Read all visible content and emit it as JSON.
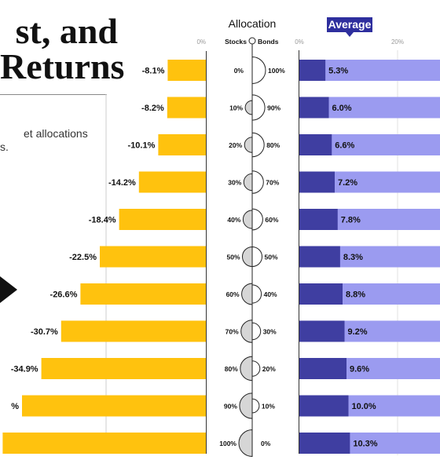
{
  "header": {
    "title_line1": "st, and",
    "title_line2": "Returns",
    "subtitle_line1": "et allocations",
    "subtitle_line2": "s."
  },
  "allocation": {
    "title": "Allocation",
    "stocks_label": "Stocks",
    "bonds_label": "Bonds"
  },
  "average_badge": "Average",
  "colors": {
    "worst_bar": "#ffc20e",
    "avg_bar_dark": "#3f3ea1",
    "avg_bar_light": "#9b9bf0",
    "badge": "#2e2f9e"
  },
  "chart_data": [
    {
      "type": "bar",
      "orientation": "horizontal",
      "categories": [
        "0% / 100%",
        "10% / 90%",
        "20% / 80%",
        "30% / 70%",
        "40% / 60%",
        "50% / 50%",
        "60% / 40%",
        "70% / 30%",
        "80% / 20%",
        "90% / 10%",
        "100% / 0%"
      ],
      "values": [
        -8.1,
        -8.2,
        -10.1,
        -14.2,
        -18.4,
        -22.5,
        -26.6,
        -30.7,
        -34.9,
        -39.0,
        -43.1
      ],
      "labels": [
        "-8.1%",
        "-8.2%",
        "-10.1%",
        "-14.2%",
        "-18.4%",
        "-22.5%",
        "-26.6%",
        "-30.7%",
        "-34.9%",
        "%",
        ""
      ],
      "tick_labels": [
        "0%"
      ],
      "grid": true
    },
    {
      "type": "bar",
      "orientation": "horizontal",
      "categories": [
        "0% / 100%",
        "10% / 90%",
        "20% / 80%",
        "30% / 70%",
        "40% / 60%",
        "50% / 50%",
        "60% / 40%",
        "70% / 30%",
        "80% / 20%",
        "90% / 10%",
        "100% / 0%"
      ],
      "values": [
        5.3,
        6.0,
        6.6,
        7.2,
        7.8,
        8.3,
        8.8,
        9.2,
        9.6,
        10.0,
        10.3
      ],
      "labels": [
        "5.3%",
        "6.0%",
        "6.6%",
        "7.2%",
        "7.8%",
        "8.3%",
        "8.8%",
        "9.2%",
        "9.6%",
        "10.0%",
        "10.3%"
      ],
      "tick_labels": [
        "0%",
        "20%"
      ],
      "grid": true
    }
  ],
  "allocations": [
    {
      "stocks": "0%",
      "bonds": "100%",
      "stock_frac": 0.0
    },
    {
      "stocks": "10%",
      "bonds": "90%",
      "stock_frac": 0.1
    },
    {
      "stocks": "20%",
      "bonds": "80%",
      "stock_frac": 0.2
    },
    {
      "stocks": "30%",
      "bonds": "70%",
      "stock_frac": 0.3
    },
    {
      "stocks": "40%",
      "bonds": "60%",
      "stock_frac": 0.4
    },
    {
      "stocks": "50%",
      "bonds": "50%",
      "stock_frac": 0.5
    },
    {
      "stocks": "60%",
      "bonds": "40%",
      "stock_frac": 0.6
    },
    {
      "stocks": "70%",
      "bonds": "30%",
      "stock_frac": 0.7
    },
    {
      "stocks": "80%",
      "bonds": "20%",
      "stock_frac": 0.8
    },
    {
      "stocks": "90%",
      "bonds": "10%",
      "stock_frac": 0.9
    },
    {
      "stocks": "100%",
      "bonds": "0%",
      "stock_frac": 1.0
    }
  ]
}
